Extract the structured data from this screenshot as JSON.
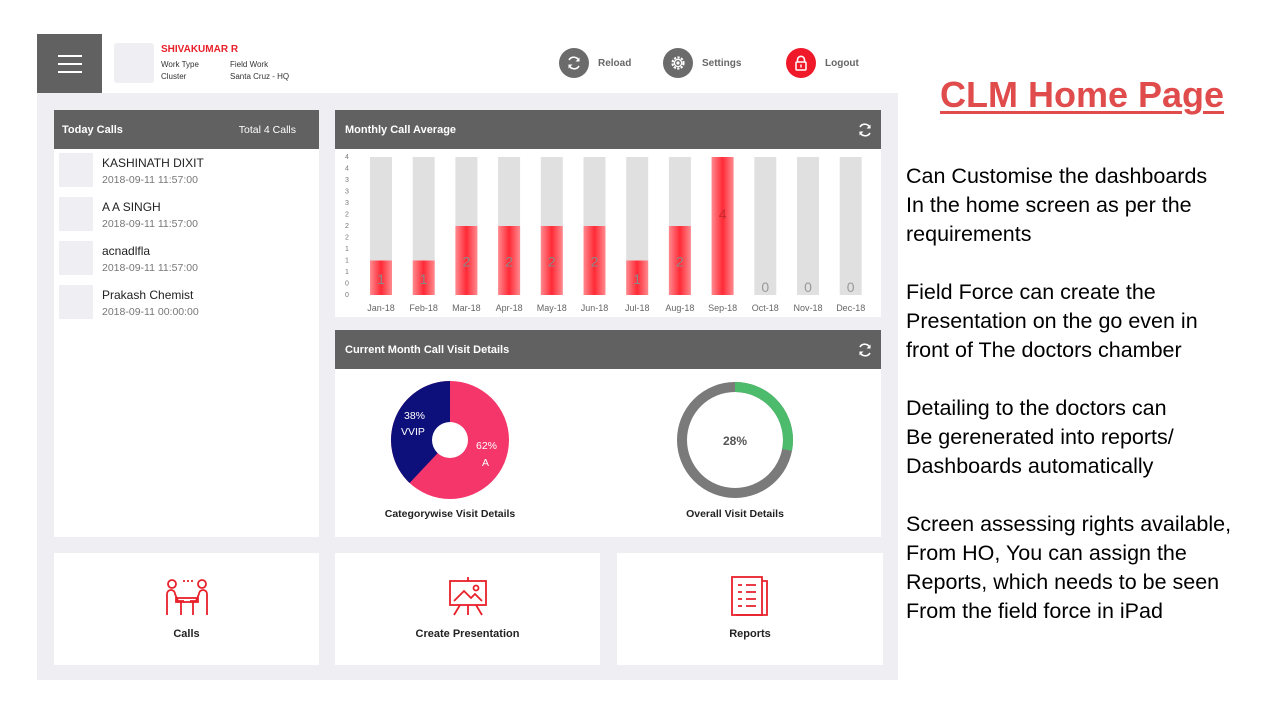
{
  "header": {
    "user_name": "SHIVAKUMAR R",
    "work_type_label": "Work Type",
    "work_type_value": "Field Work",
    "cluster_label": "Cluster",
    "cluster_value": "Santa Cruz - HQ",
    "reload_label": "Reload",
    "settings_label": "Settings",
    "logout_label": "Logout"
  },
  "today_calls": {
    "title": "Today Calls",
    "total": "Total 4 Calls",
    "items": [
      {
        "name": "KASHINATH DIXIT",
        "time": "2018-09-11 11:57:00"
      },
      {
        "name": "A A SINGH",
        "time": "2018-09-11 11:57:00"
      },
      {
        "name": "acnadlfla",
        "time": "2018-09-11 11:57:00"
      },
      {
        "name": "Prakash Chemist",
        "time": "2018-09-11 00:00:00"
      }
    ]
  },
  "monthly": {
    "title": "Monthly Call Average",
    "y_ticks": [
      "4",
      "4",
      "3",
      "3",
      "3",
      "2",
      "2",
      "2",
      "1",
      "1",
      "1",
      "0",
      "0"
    ]
  },
  "visit": {
    "title": "Current Month Call Visit Details",
    "pie_title": "Categorywise Visit Details",
    "pie_a_pct": "62%",
    "pie_a_label": "A",
    "pie_b_pct": "38%",
    "pie_b_label": "VVIP",
    "ring_title": "Overall Visit Details",
    "ring_value": "28%"
  },
  "tiles": {
    "calls": "Calls",
    "presentation": "Create Presentation",
    "reports": "Reports"
  },
  "slide": {
    "title": "CLM Home Page",
    "p1": "Can Customise the dashboards\nIn the home screen as per the\nrequirements",
    "p2": "Field Force can create the\nPresentation  on the go even in\nfront of The doctors chamber",
    "p3": "Detailing to the doctors can\nBe gerenerated into reports/\nDashboards automatically",
    "p4": "Screen assessing rights available,\nFrom HO, You can assign the\nReports, which needs to be seen\nFrom the field force in iPad"
  },
  "colors": {
    "header_grey": "#616161",
    "accent_red": "#f0192a",
    "pie_pink": "#f4366b",
    "pie_navy": "#0d0f7a",
    "ring_green": "#4cbb6c",
    "ring_grey": "#7a7a7a"
  },
  "chart_data": {
    "type": "bar",
    "categories": [
      "Jan-18",
      "Feb-18",
      "Mar-18",
      "Apr-18",
      "May-18",
      "Jun-18",
      "Jul-18",
      "Aug-18",
      "Sep-18",
      "Oct-18",
      "Nov-18",
      "Dec-18"
    ],
    "values": [
      1,
      1,
      2,
      2,
      2,
      2,
      1,
      2,
      4,
      0,
      0,
      0
    ],
    "title": "Monthly Call Average",
    "ylim": [
      0,
      4
    ],
    "highlight_index": 8
  }
}
